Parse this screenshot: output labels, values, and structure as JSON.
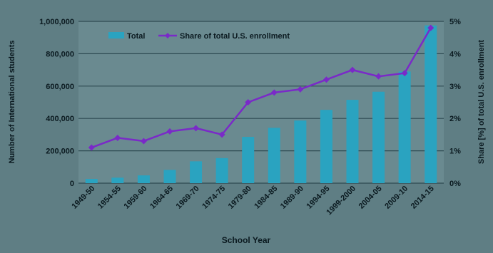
{
  "chart_data": {
    "type": "bar+line",
    "xlabel": "School Year",
    "ylabel_left": "Number of International students",
    "ylabel_right": "Share [%] of total U.S. enrollment",
    "categories": [
      "1949-50",
      "1954-55",
      "1959-60",
      "1964-65",
      "1969-70",
      "1974-75",
      "1979-80",
      "1984-85",
      "1989-90",
      "1994-95",
      "1999-2000",
      "2004-05",
      "2009-10",
      "2014-15"
    ],
    "y_left_ticks": [
      "0",
      "200,000",
      "400,000",
      "600,000",
      "800,000",
      "1,000,000"
    ],
    "y_right_ticks": [
      "0%",
      "1%",
      "2%",
      "3%",
      "4%",
      "5%"
    ],
    "ylim_left": [
      0,
      1000000
    ],
    "ylim_right": [
      0,
      5
    ],
    "legend_placement": "top-left",
    "grid": "horizontal",
    "series": [
      {
        "name": "Total",
        "type": "bar",
        "axis": "left",
        "color": "#2aa3c0",
        "values": [
          26000,
          34000,
          48000,
          82000,
          135000,
          155000,
          286000,
          342000,
          387000,
          453000,
          515000,
          565000,
          690000,
          975000
        ]
      },
      {
        "name": "Share of total U.S. enrollment",
        "type": "line",
        "axis": "right",
        "color": "#7a2ac8",
        "values": [
          1.1,
          1.4,
          1.3,
          1.6,
          1.7,
          1.5,
          2.5,
          2.8,
          2.9,
          3.2,
          3.5,
          3.3,
          3.4,
          4.8
        ]
      }
    ]
  },
  "colors": {
    "background": "#5f7e84",
    "plot_background": "#6a8a90",
    "gridline": "#2e4a52",
    "text": "#0b1a20"
  }
}
